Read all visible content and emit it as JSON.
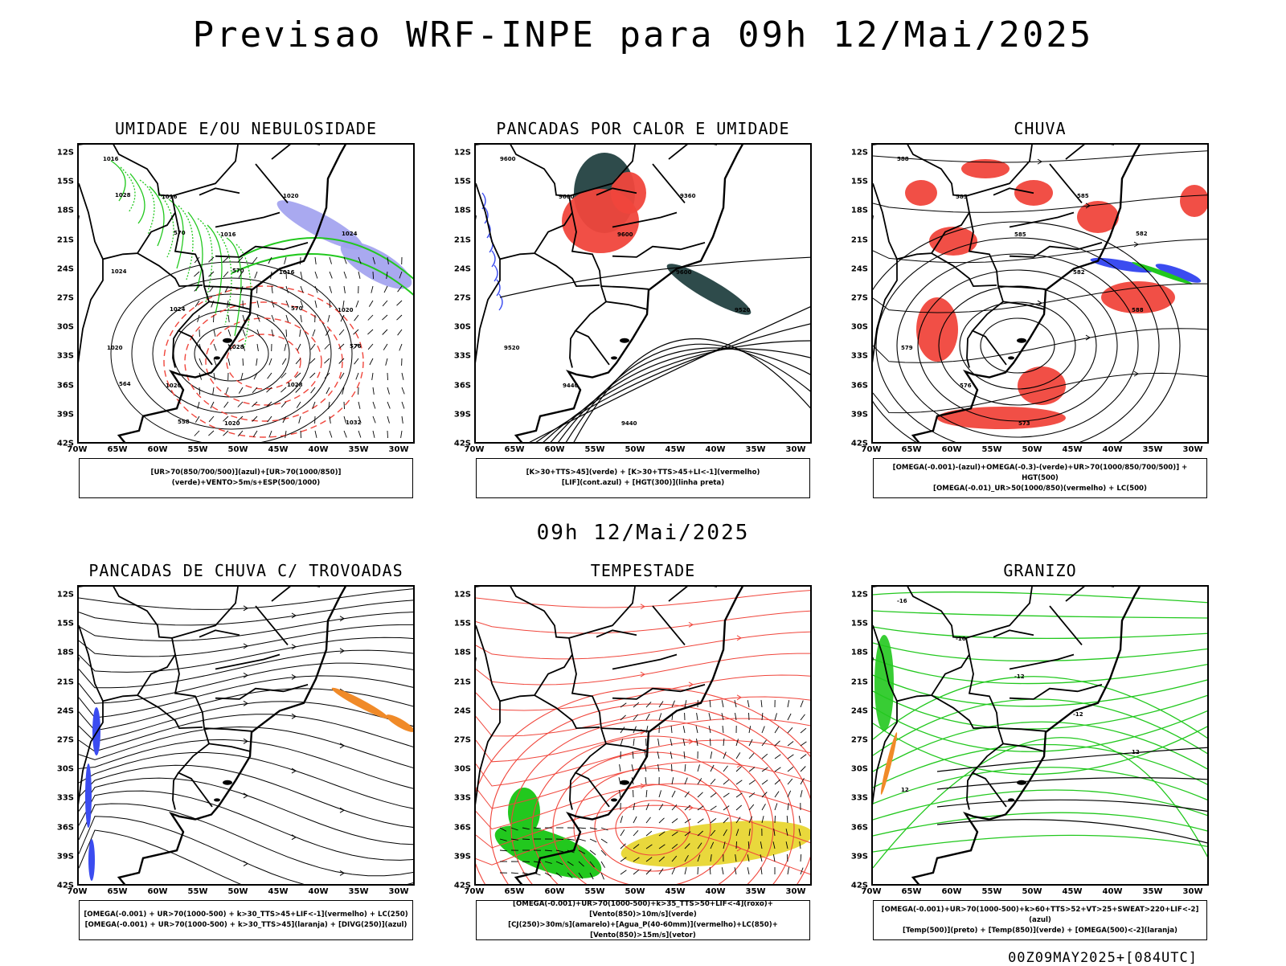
{
  "title": "Previsao WRF-INPE  para 09h 12/Mai/2025",
  "mid_date": "09h 12/Mai/2025",
  "run_info": "00Z09MAY2025+[084UTC]",
  "lat_ticks": [
    "12S",
    "15S",
    "18S",
    "21S",
    "24S",
    "27S",
    "30S",
    "33S",
    "36S",
    "39S",
    "42S"
  ],
  "lon_ticks": [
    "70W",
    "65W",
    "60W",
    "55W",
    "50W",
    "45W",
    "40W",
    "35W",
    "30W"
  ],
  "colors": {
    "blue": "#3b4cf0",
    "green": "#22c81e",
    "red": "#f0463c",
    "darkteal": "#2e4b4b",
    "orange": "#f08a28",
    "yellow": "#e8d632",
    "lavender": "#a0a0ee",
    "black": "#000000"
  },
  "panels": [
    {
      "id": "umidade",
      "title": "UMIDADE E/OU NEBULOSIDADE",
      "legend": [
        "[UR>70(850/700/500)](azul)+[UR>70(1000/850)](verde)+VENTO>5m/s+ESP(500/1000)"
      ],
      "contour_labels": [
        "1016",
        "1016",
        "1016",
        "1016",
        "1020",
        "1020",
        "1020",
        "1020",
        "1020",
        "1024",
        "1024",
        "1024",
        "1028",
        "1028",
        "1032",
        "1028",
        "570",
        "570",
        "570",
        "576",
        "564",
        "558"
      ]
    },
    {
      "id": "calor",
      "title": "PANCADAS POR CALOR E UMIDADE",
      "legend": [
        "[K>30+TTS>45](verde) + [K>30+TTS>45+LI<-1](vermelho)",
        "[LIF](cont.azul) + [HGT(300)](linha preta)"
      ],
      "contour_labels": [
        "9600",
        "9600",
        "9600",
        "9600",
        "9520",
        "9520",
        "9440",
        "9440",
        "9360"
      ]
    },
    {
      "id": "chuva",
      "title": "CHUVA",
      "legend": [
        "[OMEGA(-0.001)-(azul)+OMEGA(-0.3)-(verde)+UR>70(1000/850/700/500)] + HGT(500)",
        "[OMEGA(-0.01)_UR>50(1000/850)(vermelho) + LC(500)"
      ],
      "contour_labels": [
        "588",
        "585",
        "585",
        "582",
        "588",
        "579",
        "576",
        "573",
        "585",
        "582"
      ]
    },
    {
      "id": "trovoadas",
      "title": "PANCADAS DE CHUVA C/ TROVOADAS",
      "legend": [
        "[OMEGA(-0.001) + UR>70(1000-500) + k>30_TTS>45+LIF<-1](vermelho) + LC(250)",
        "[OMEGA(-0.001) + UR>70(1000-500) + k>30_TTS>45](laranja) + [DIVG(250)](azul)"
      ],
      "contour_labels": []
    },
    {
      "id": "tempestade",
      "title": "TEMPESTADE",
      "legend": [
        "[OMEGA(-0.001)+UR>70(1000-500)+k>35_TTS>50+LIF<-4](roxo)+[Vento(850)>10m/s](verde)",
        "[CJ(250)>30m/s](amarelo)+[Agua_P(40-60mm)](vermelho)+LC(850)+[Vento(850)>15m/s](vetor)"
      ],
      "contour_labels": []
    },
    {
      "id": "granizo",
      "title": "GRANIZO",
      "legend": [
        "[OMEGA(-0.001)+UR>70(1000-500)+k>60+TTS>52+VT>25+SWEAT>220+LIF<-2](azul)",
        "[Temp(500)](preto) + [Temp(850)](verde) + [OMEGA(500)<-2](laranja)"
      ],
      "contour_labels": [
        "-16",
        "-16",
        "-12",
        "-12",
        "12",
        "12"
      ]
    }
  ]
}
